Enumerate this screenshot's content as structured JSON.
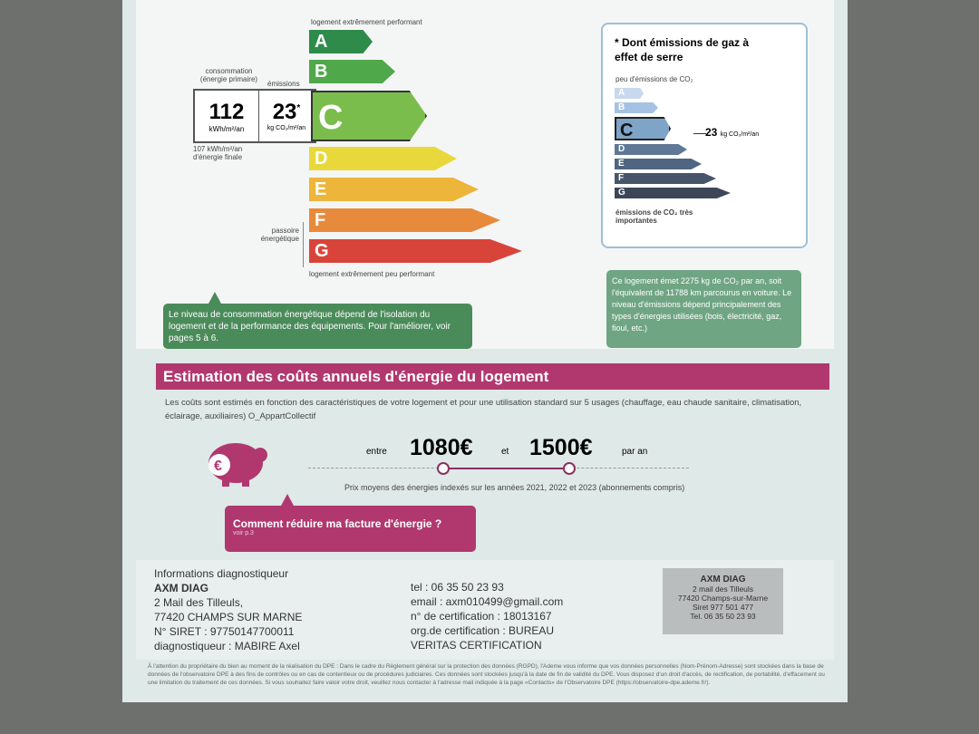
{
  "energy": {
    "top_label": "logement extrêmement performant",
    "bottom_label": "logement extrêmement peu performant",
    "consumption_label": "consommation (énergie primaire)",
    "emissions_label": "émissions",
    "consumption_value": "112",
    "consumption_unit": "kWh/m²/an",
    "emissions_value": "23",
    "emissions_star": "*",
    "emissions_unit": "kg CO₂/m²/an",
    "final_energy": "107 kWh/m²/an d'énergie finale",
    "passoire": "passoire énergétique",
    "classes": [
      "A",
      "B",
      "C",
      "D",
      "E",
      "F",
      "G"
    ],
    "current_class": "C",
    "colors": [
      "#2e8b4a",
      "#4fa84a",
      "#7bbd4c",
      "#e8d83c",
      "#edb53a",
      "#e88a3c",
      "#d9443a"
    ]
  },
  "ghg": {
    "title": "* Dont émissions de gaz à effet de serre",
    "top_label": "peu d'émissions de CO₂",
    "bottom_label": "émissions de CO₂ très importantes",
    "value": "23",
    "unit": "kg CO₂/m²/an",
    "classes": [
      "A",
      "B",
      "C",
      "D",
      "E",
      "F",
      "G"
    ],
    "current_class": "C"
  },
  "bubble_left": "Le niveau de consommation énergétique dépend de l'isolation du logement et de la performance des équipements. Pour l'améliorer, voir pages 5 à 6.",
  "bubble_right": "Ce logement émet 2275 kg de CO₂ par an, soit l'équivalent de 11788 km parcourus en voiture. Le niveau d'émissions dépend principalement des types d'énergies utilisées (bois, électricité, gaz, fioul, etc.)",
  "costs": {
    "title": "Estimation des coûts annuels d'énergie du logement",
    "description": "Les coûts sont estimés en fonction des caractéristiques de votre logement et pour une utilisation standard sur 5 usages (chauffage, eau chaude sanitaire, climatisation, éclairage, auxiliaires) O_AppartCollectif",
    "between": "entre",
    "min": "1080€",
    "and": "et",
    "max": "1500€",
    "per_year": "par an",
    "prices_note": "Prix moyens des énergies indexés sur les années 2021, 2022 et 2023 (abonnements compris)",
    "reduce_title": "Comment réduire ma facture d'énergie ?",
    "reduce_sub": "voir p.3"
  },
  "diag": {
    "heading": "Informations diagnostiqueur",
    "company": "AXM DIAG",
    "address1": "2 Mail des Tilleuls,",
    "address2": "77420 CHAMPS SUR MARNE",
    "siret": "N° SIRET : 97750147700011",
    "diagnostician": "diagnostiqueur : MABIRE Axel",
    "tel": "tel : 06 35 50 23 93",
    "email": "email : axm010499@gmail.com",
    "cert": "n° de certification : 18013167",
    "org": "org.de certification : BUREAU VERITAS CERTIFICATION",
    "stamp": [
      "AXM DIAG",
      "2 mail des Tilleuls",
      "77420 Champs-sur-Marne",
      "Siret 977 501 477",
      "Tel. 06 35 50 23 93"
    ]
  },
  "footnote": "À l'attention du propriétaire du bien au moment de la réalisation du DPE : Dans le cadre du Règlement général sur la protection des données (RGPD), l'Ademe vous informe que vos données personnelles (Nom-Prénom-Adresse) sont stockées dans la base de données de l'observatoire DPE à des fins de contrôles ou en cas de contentieux ou de procédures judiciaires. Ces données sont stockées jusqu'à la date de fin de validité du DPE. Vous disposez d'un droit d'accès, de rectification, de portabilité, d'effacement ou une limitation du traitement de ces données. Si vous souhaitez faire valoir votre droit, veuillez nous contacter à l'adresse mail indiquée à la page «Contacts» de l'Observatoire DPE (https://observatoire-dpe.ademe.fr/)."
}
